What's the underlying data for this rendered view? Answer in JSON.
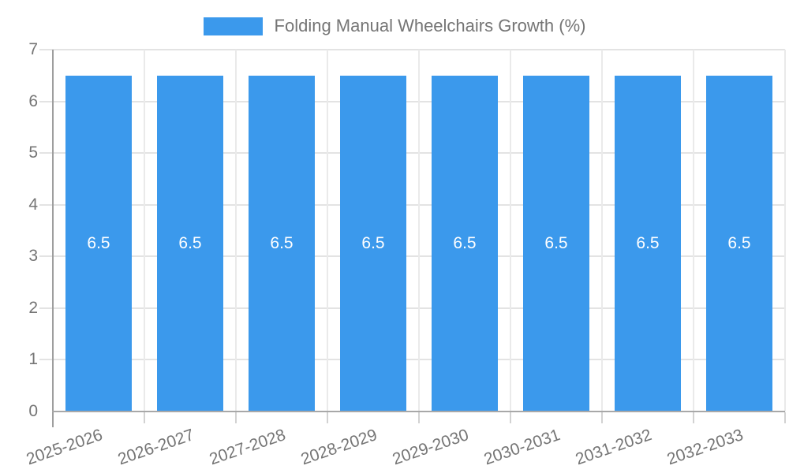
{
  "legend": {
    "label": "Folding Manual Wheelchairs Growth (%)"
  },
  "chart_data": {
    "type": "bar",
    "title": "Folding Manual Wheelchairs Growth (%)",
    "categories": [
      "2025-2026",
      "2026-2027",
      "2027-2028",
      "2028-2029",
      "2029-2030",
      "2030-2031",
      "2031-2032",
      "2032-2033"
    ],
    "values": [
      6.5,
      6.5,
      6.5,
      6.5,
      6.5,
      6.5,
      6.5,
      6.5
    ],
    "value_labels": [
      "6.5",
      "6.5",
      "6.5",
      "6.5",
      "6.5",
      "6.5",
      "6.5",
      "6.5"
    ],
    "series": [
      {
        "name": "Folding Manual Wheelchairs Growth (%)",
        "values": [
          6.5,
          6.5,
          6.5,
          6.5,
          6.5,
          6.5,
          6.5,
          6.5
        ]
      }
    ],
    "xlabel": "",
    "ylabel": "",
    "ylim": [
      0,
      7
    ],
    "yticks": [
      0,
      1,
      2,
      3,
      4,
      5,
      6,
      7
    ],
    "grid": true,
    "legend_position": "top",
    "bar_label_position": "middle",
    "colors": {
      "bar": "#3b99ec",
      "axis_text": "#757575",
      "bar_label_text": "#ffffff",
      "hgridline": "#e3e3e3",
      "vgridline": "#eaeaea",
      "axis_line": "#9e9e9e",
      "baseline": "#a8a8a8",
      "tick": "#d2d2d2",
      "background": "#ffffff"
    }
  }
}
